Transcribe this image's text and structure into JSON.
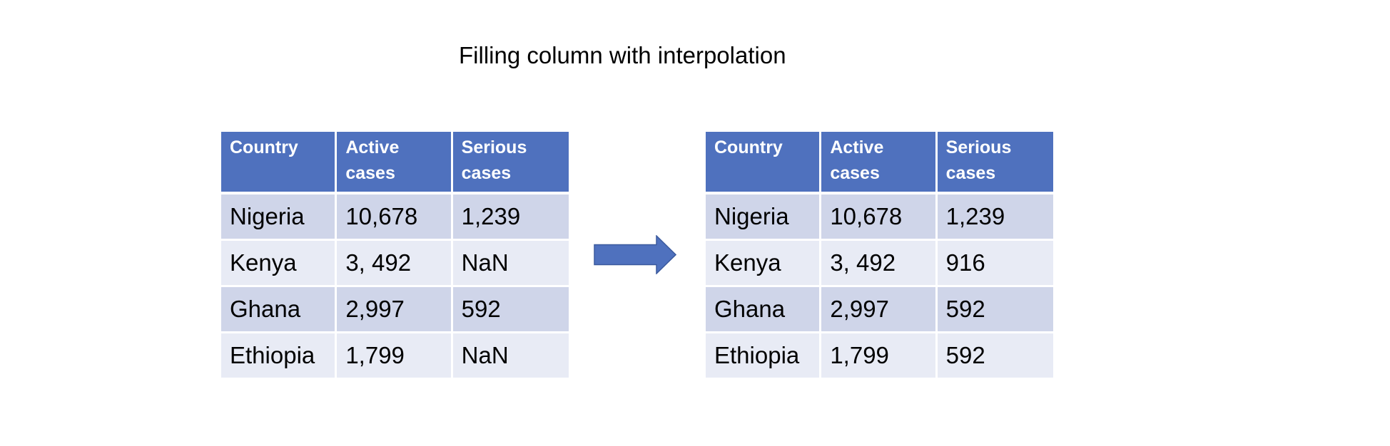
{
  "title": "Filling column with interpolation",
  "colors": {
    "header_bg": "#4f71be",
    "row_dark": "#cfd5e9",
    "row_light": "#e8ebf5",
    "arrow": "#4f71be"
  },
  "arrow_icon": "right-arrow-icon",
  "tables": [
    {
      "headers": [
        {
          "line1": "Country",
          "line2": ""
        },
        {
          "line1": "Active",
          "line2": "cases"
        },
        {
          "line1": "Serious",
          "line2": "cases"
        }
      ],
      "rows": [
        [
          "Nigeria",
          "10,678",
          "1,239"
        ],
        [
          "Kenya",
          "3, 492",
          "NaN"
        ],
        [
          "Ghana",
          "2,997",
          "592"
        ],
        [
          "Ethiopia",
          "1,799",
          "NaN"
        ]
      ]
    },
    {
      "headers": [
        {
          "line1": "Country",
          "line2": ""
        },
        {
          "line1": "Active",
          "line2": "cases"
        },
        {
          "line1": "Serious",
          "line2": "cases"
        }
      ],
      "rows": [
        [
          "Nigeria",
          "10,678",
          "1,239"
        ],
        [
          "Kenya",
          "3, 492",
          "916"
        ],
        [
          "Ghana",
          "2,997",
          "592"
        ],
        [
          "Ethiopia",
          "1,799",
          "592"
        ]
      ]
    }
  ]
}
